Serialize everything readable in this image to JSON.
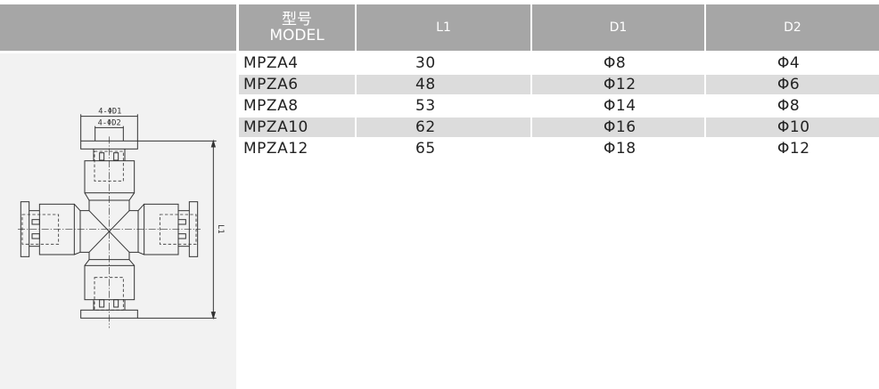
{
  "table": {
    "headers": [
      {
        "cn": "型号",
        "en": "MODEL"
      },
      {
        "label": "L1"
      },
      {
        "label": "D1"
      },
      {
        "label": "D2"
      }
    ],
    "rows": [
      [
        "MPZA4",
        "30",
        "Φ8",
        "Φ4"
      ],
      [
        "MPZA6",
        "48",
        "Φ12",
        "Φ6"
      ],
      [
        "MPZA8",
        "53",
        "Φ14",
        "Φ8"
      ],
      [
        "MPZA10",
        "62",
        "Φ16",
        "Φ10"
      ],
      [
        "MPZA12",
        "65",
        "Φ18",
        "Φ12"
      ]
    ]
  },
  "drawing": {
    "d1_label": "4-ΦD1",
    "d2_label": "4-ΦD2",
    "l_label": "L1"
  },
  "colors": {
    "header_bg": "#a6a6a6",
    "alt_row": "#dcdcdc",
    "panel_bg": "#f2f2f2"
  }
}
